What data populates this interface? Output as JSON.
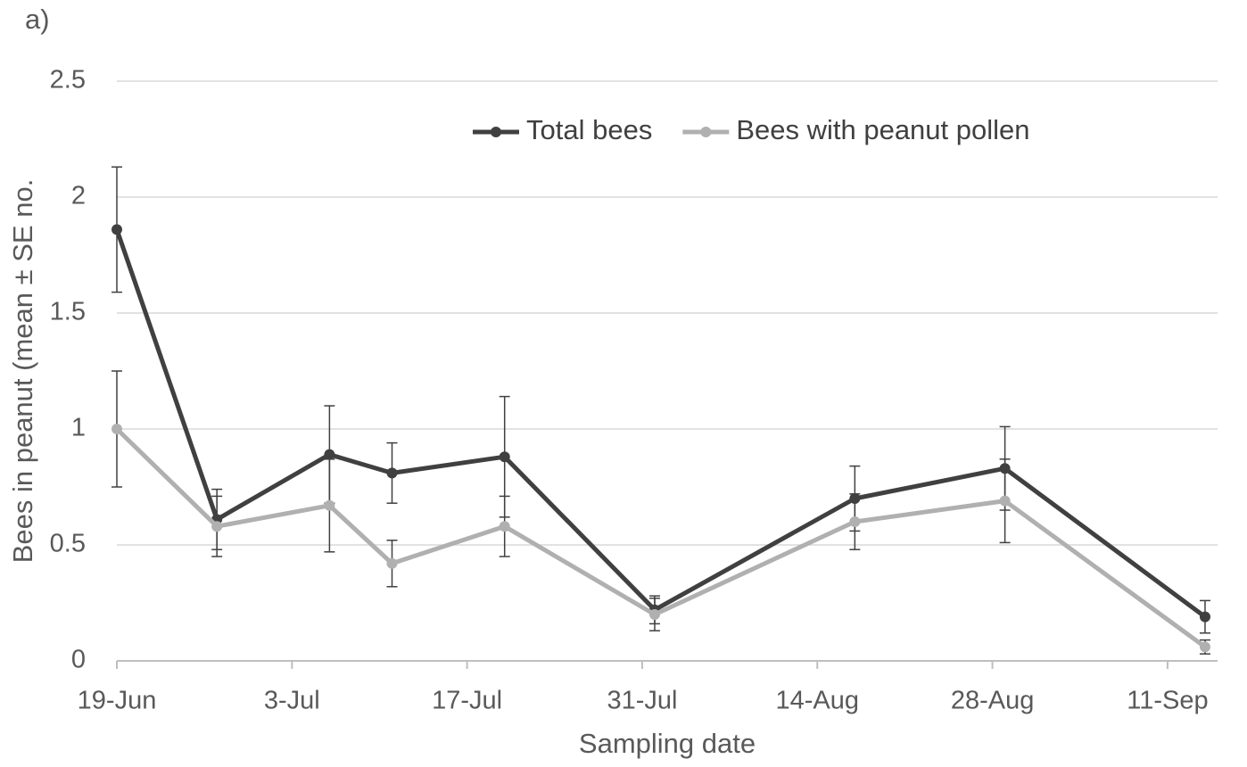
{
  "chart_data": {
    "type": "line",
    "panel_label": "a)",
    "x_label": "Sampling date",
    "y_label": "Bees in peanut (mean ± SE no.",
    "x": [
      170,
      178,
      187,
      192,
      201,
      213,
      229,
      241,
      257
    ],
    "series": [
      {
        "name": "Total bees",
        "color": "#404040",
        "values": [
          1.86,
          0.61,
          0.89,
          0.81,
          0.88,
          0.22,
          0.7,
          0.83,
          0.19
        ],
        "errors": [
          0.27,
          0.13,
          0.21,
          0.13,
          0.26,
          0.06,
          0.14,
          0.18,
          0.07
        ]
      },
      {
        "name": "Bees with peanut pollen",
        "color": "#b0b0b0",
        "values": [
          1.0,
          0.58,
          0.67,
          0.42,
          0.58,
          0.2,
          0.6,
          0.69,
          0.06
        ],
        "errors": [
          0.25,
          0.13,
          0.2,
          0.1,
          0.13,
          0.07,
          0.12,
          0.18,
          0.03
        ]
      }
    ],
    "xlim": [
      170,
      258
    ],
    "xticks": [
      {
        "value": 170,
        "label": "19-Jun"
      },
      {
        "value": 184,
        "label": "3-Jul"
      },
      {
        "value": 198,
        "label": "17-Jul"
      },
      {
        "value": 212,
        "label": "31-Jul"
      },
      {
        "value": 226,
        "label": "14-Aug"
      },
      {
        "value": 240,
        "label": "28-Aug"
      },
      {
        "value": 254,
        "label": "11-Sep"
      }
    ],
    "ylim": [
      0,
      2.5
    ],
    "yticks": [
      0,
      0.5,
      1,
      1.5,
      2,
      2.5
    ],
    "grid": true,
    "legend": "top"
  }
}
